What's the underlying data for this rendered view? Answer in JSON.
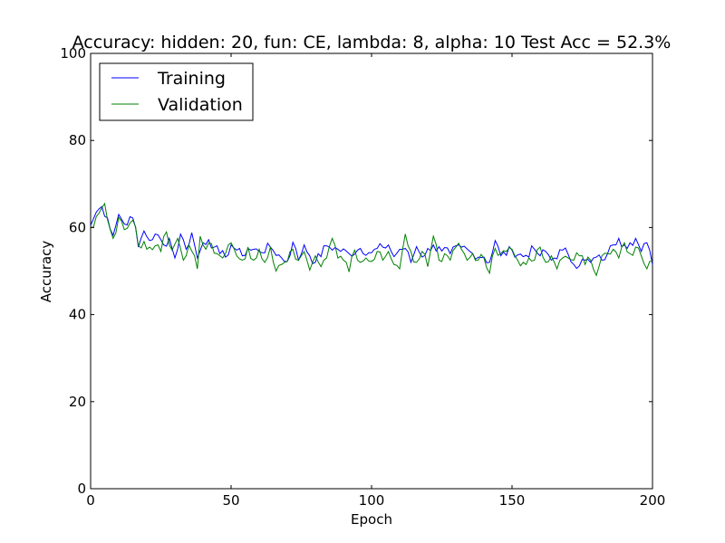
{
  "chart_data": {
    "type": "line",
    "title": "Accuracy: hidden: 20, fun: CE, lambda: 8, alpha: 10  Test Acc = 52.3%",
    "xlabel": "Epoch",
    "ylabel": "Accuracy",
    "xlim": [
      0,
      200
    ],
    "ylim": [
      0,
      100
    ],
    "xticks": [
      0,
      50,
      100,
      150,
      200
    ],
    "yticks": [
      0,
      20,
      40,
      60,
      80,
      100
    ],
    "grid": false,
    "legend_position": "top-left",
    "series": [
      {
        "name": "Training",
        "color": "#0000ff",
        "anchors": [
          [
            0,
            60.5
          ],
          [
            2,
            63.5
          ],
          [
            4,
            64.8
          ],
          [
            6,
            62.2
          ],
          [
            8,
            58.2
          ],
          [
            10,
            63
          ],
          [
            12,
            60.8
          ],
          [
            14,
            62.5
          ],
          [
            16,
            60
          ],
          [
            17,
            55.5
          ],
          [
            19,
            59.2
          ],
          [
            21,
            57
          ],
          [
            23,
            58.5
          ],
          [
            26,
            56
          ],
          [
            28,
            57.5
          ],
          [
            30,
            53
          ],
          [
            32,
            58.5
          ],
          [
            34,
            55
          ],
          [
            36,
            58.8
          ],
          [
            38,
            53
          ],
          [
            40,
            56.5
          ],
          [
            42,
            57.2
          ],
          [
            44,
            55.5
          ],
          [
            46,
            54
          ],
          [
            48,
            53.2
          ],
          [
            50,
            56
          ],
          [
            52,
            54.8
          ],
          [
            54,
            53.5
          ],
          [
            56,
            55.2
          ],
          [
            60,
            54.5
          ],
          [
            64,
            55.5
          ],
          [
            68,
            53
          ],
          [
            70,
            52.2
          ],
          [
            72,
            56.6
          ],
          [
            74,
            52.5
          ],
          [
            76,
            56
          ],
          [
            78,
            53.5
          ],
          [
            80,
            52
          ],
          [
            84,
            55.8
          ],
          [
            88,
            55
          ],
          [
            92,
            54
          ],
          [
            96,
            55.2
          ],
          [
            100,
            54.2
          ],
          [
            104,
            55.5
          ],
          [
            106,
            56
          ],
          [
            108,
            53.3
          ],
          [
            110,
            55
          ],
          [
            112,
            55.2
          ],
          [
            114,
            52
          ],
          [
            116,
            55.6
          ],
          [
            118,
            53.2
          ],
          [
            120,
            55.2
          ],
          [
            124,
            55.6
          ],
          [
            128,
            54
          ],
          [
            132,
            55.5
          ],
          [
            136,
            54
          ],
          [
            140,
            53.2
          ],
          [
            142,
            52
          ],
          [
            144,
            57
          ],
          [
            146,
            53.5
          ],
          [
            150,
            54.8
          ],
          [
            154,
            53.3
          ],
          [
            158,
            55
          ],
          [
            160,
            53.5
          ],
          [
            162,
            54.5
          ],
          [
            164,
            52.5
          ],
          [
            168,
            54.8
          ],
          [
            170,
            53.8
          ],
          [
            172,
            51.5
          ],
          [
            176,
            52.5
          ],
          [
            178,
            52
          ],
          [
            180,
            53.2
          ],
          [
            182,
            52.5
          ],
          [
            184,
            54
          ],
          [
            186,
            56
          ],
          [
            188,
            57.5
          ],
          [
            190,
            56
          ],
          [
            192,
            56.5
          ],
          [
            194,
            57.5
          ],
          [
            196,
            54.5
          ],
          [
            198,
            56.5
          ],
          [
            200,
            51.5
          ]
        ],
        "values": []
      },
      {
        "name": "Validation",
        "color": "#008000",
        "anchors": [
          [
            0,
            60
          ],
          [
            2,
            62.5
          ],
          [
            4,
            64.5
          ],
          [
            5,
            65.5
          ],
          [
            6,
            61.8
          ],
          [
            8,
            57.5
          ],
          [
            10,
            62.3
          ],
          [
            12,
            59.5
          ],
          [
            14,
            61
          ],
          [
            16,
            60.2
          ],
          [
            17,
            55.8
          ],
          [
            19,
            56.8
          ],
          [
            21,
            55.5
          ],
          [
            23,
            55.8
          ],
          [
            25,
            54.5
          ],
          [
            27,
            59
          ],
          [
            29,
            54.8
          ],
          [
            31,
            57.5
          ],
          [
            33,
            52.5
          ],
          [
            35,
            56
          ],
          [
            37,
            53.5
          ],
          [
            38,
            50.5
          ],
          [
            39,
            58
          ],
          [
            41,
            55
          ],
          [
            43,
            56.3
          ],
          [
            45,
            54
          ],
          [
            47,
            53
          ],
          [
            50,
            56.5
          ],
          [
            52,
            53.5
          ],
          [
            54,
            52.5
          ],
          [
            56,
            55.5
          ],
          [
            58,
            52.5
          ],
          [
            60,
            55
          ],
          [
            62,
            52
          ],
          [
            64,
            55.5
          ],
          [
            66,
            50
          ],
          [
            68,
            51.5
          ],
          [
            70,
            52.2
          ],
          [
            72,
            55
          ],
          [
            74,
            52.5
          ],
          [
            76,
            54.5
          ],
          [
            78,
            50.2
          ],
          [
            80,
            53.5
          ],
          [
            82,
            51
          ],
          [
            84,
            53
          ],
          [
            86,
            57.5
          ],
          [
            88,
            53
          ],
          [
            90,
            52.5
          ],
          [
            92,
            49.8
          ],
          [
            94,
            54.8
          ],
          [
            96,
            52
          ],
          [
            98,
            53
          ],
          [
            100,
            52.2
          ],
          [
            102,
            54.5
          ],
          [
            104,
            52.5
          ],
          [
            106,
            54.5
          ],
          [
            108,
            51.5
          ],
          [
            110,
            50.5
          ],
          [
            112,
            58.5
          ],
          [
            114,
            54.5
          ],
          [
            116,
            52
          ],
          [
            118,
            54.5
          ],
          [
            120,
            51
          ],
          [
            122,
            58
          ],
          [
            124,
            52.5
          ],
          [
            126,
            54
          ],
          [
            128,
            52.5
          ],
          [
            130,
            55.5
          ],
          [
            132,
            55
          ],
          [
            134,
            52.5
          ],
          [
            136,
            54
          ],
          [
            138,
            52.5
          ],
          [
            140,
            53
          ],
          [
            142,
            49.5
          ],
          [
            144,
            55.2
          ],
          [
            146,
            54
          ],
          [
            148,
            54.5
          ],
          [
            150,
            55
          ],
          [
            152,
            52.5
          ],
          [
            154,
            52
          ],
          [
            156,
            53
          ],
          [
            158,
            52.5
          ],
          [
            160,
            55.5
          ],
          [
            162,
            52
          ],
          [
            164,
            53.5
          ],
          [
            166,
            50.5
          ],
          [
            168,
            53
          ],
          [
            170,
            53
          ],
          [
            172,
            52.5
          ],
          [
            174,
            53.5
          ],
          [
            176,
            51.5
          ],
          [
            178,
            52.5
          ],
          [
            180,
            49
          ],
          [
            182,
            53.5
          ],
          [
            184,
            54
          ],
          [
            186,
            55
          ],
          [
            188,
            53
          ],
          [
            190,
            56.5
          ],
          [
            192,
            54
          ],
          [
            194,
            55.5
          ],
          [
            196,
            53.5
          ],
          [
            198,
            50.5
          ],
          [
            200,
            52.2
          ]
        ],
        "values": []
      }
    ]
  }
}
